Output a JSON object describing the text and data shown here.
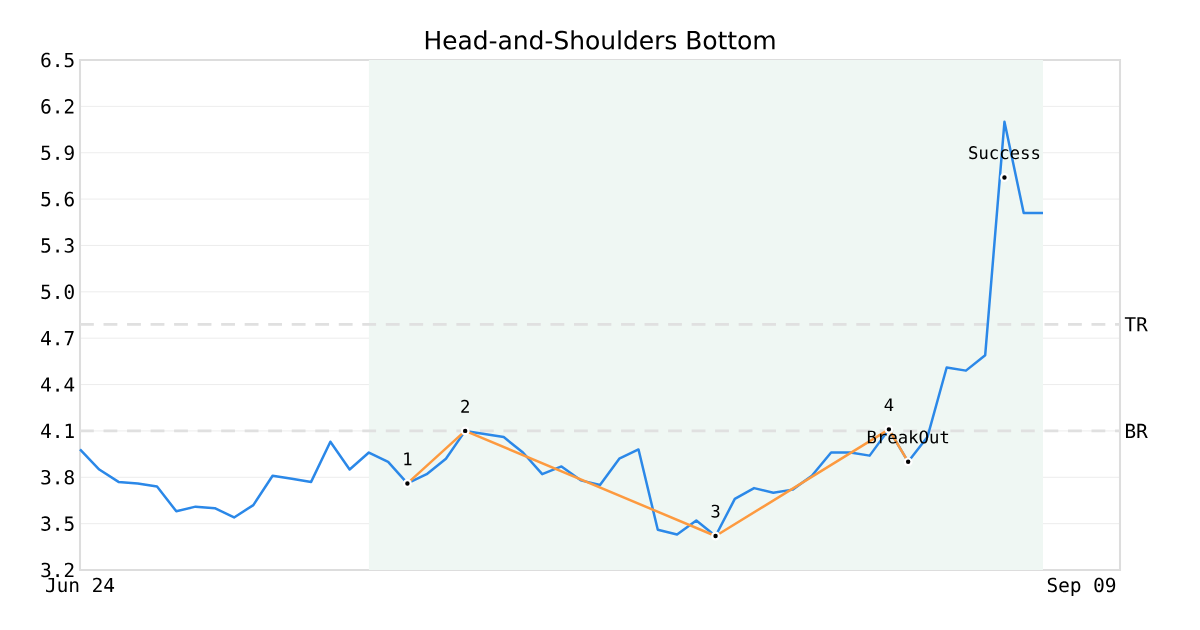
{
  "chart_data": {
    "type": "line",
    "title": "Head-and-Shoulders Bottom",
    "categories": [
      "Jun 24",
      null,
      null,
      null,
      null,
      null,
      null,
      null,
      null,
      null,
      null,
      null,
      null,
      null,
      null,
      null,
      null,
      null,
      null,
      null,
      null,
      null,
      null,
      null,
      null,
      null,
      null,
      null,
      null,
      null,
      null,
      null,
      null,
      null,
      null,
      null,
      null,
      null,
      null,
      null,
      null,
      null,
      null,
      null,
      null,
      null,
      null,
      null,
      null,
      null,
      null,
      null,
      "Sep 09",
      null,
      null
    ],
    "series": [
      {
        "color": "#2b88e8",
        "values": [
          3.98,
          3.85,
          3.77,
          3.76,
          3.74,
          3.58,
          3.61,
          3.6,
          3.54,
          3.62,
          3.81,
          3.79,
          3.77,
          4.03,
          3.85,
          3.96,
          3.9,
          3.76,
          3.82,
          3.92,
          4.1,
          4.08,
          4.06,
          3.96,
          3.82,
          3.87,
          3.78,
          3.75,
          3.92,
          3.98,
          3.46,
          3.43,
          3.52,
          3.42,
          3.66,
          3.73,
          3.7,
          3.72,
          3.81,
          3.96,
          3.96,
          3.94,
          4.11,
          3.9,
          4.06,
          4.51,
          4.49,
          4.59,
          6.1,
          5.51,
          5.51,
          null,
          null,
          null,
          null
        ]
      },
      {
        "color": "#fd9a3f",
        "values": [
          null,
          null,
          null,
          null,
          null,
          null,
          null,
          null,
          null,
          null,
          null,
          null,
          null,
          null,
          null,
          null,
          null,
          3.76,
          null,
          null,
          4.1,
          null,
          null,
          null,
          null,
          null,
          null,
          null,
          null,
          null,
          null,
          null,
          null,
          3.42,
          null,
          null,
          null,
          null,
          null,
          null,
          null,
          null,
          4.11,
          3.9,
          null,
          null,
          null,
          null,
          null,
          null,
          null,
          null,
          null,
          null,
          null
        ]
      },
      {
        "type": "scatter",
        "color": "#000000",
        "values": [
          null,
          null,
          null,
          null,
          null,
          null,
          null,
          null,
          null,
          null,
          null,
          null,
          null,
          null,
          null,
          null,
          null,
          3.76,
          null,
          null,
          4.1,
          null,
          null,
          null,
          null,
          null,
          null,
          null,
          null,
          null,
          null,
          null,
          null,
          3.42,
          null,
          null,
          null,
          null,
          null,
          null,
          null,
          null,
          4.11,
          3.9,
          null,
          null,
          null,
          null,
          5.74,
          null,
          null,
          null,
          null,
          null,
          null
        ]
      }
    ],
    "ylim": [
      3.2,
      6.5
    ],
    "yticks": [
      3.2,
      3.5,
      3.8,
      4.1,
      4.4,
      4.7,
      {
        "value": 5,
        "label": "5.0"
      },
      5.3,
      5.6,
      5.9,
      6.2,
      6.5
    ],
    "grid": "y",
    "ref_lines": [
      {
        "axis": "y",
        "value": 4.79,
        "label": "TR",
        "color": "#e0e0e0",
        "line_style": "dashed"
      },
      {
        "axis": "y",
        "value": 4.1,
        "label": "BR",
        "color": "#e0e0e0",
        "line_style": "dashed"
      }
    ],
    "annotations": [
      {
        "text": "1",
        "y": 3.76
      },
      {
        "text": "2",
        "y": 4.1
      },
      {
        "text": "3",
        "y": 3.42
      },
      {
        "text": "4",
        "y": 4.11
      },
      {
        "text": "BreakOut",
        "y": 3.9
      },
      {
        "text": "Success",
        "y": 5.74
      }
    ]
  }
}
